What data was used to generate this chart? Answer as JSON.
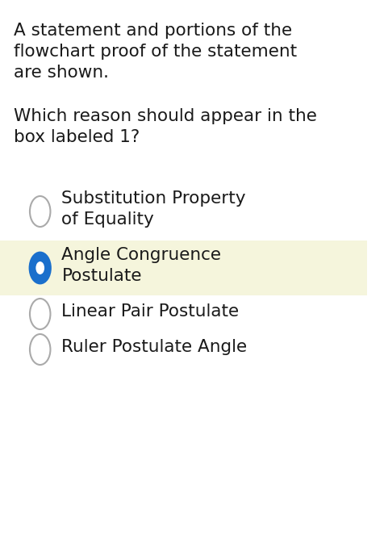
{
  "bg_color": "#ffffff",
  "highlight_color": "#f5f5dc",
  "question_lines": [
    "A statement and portions of the",
    "flowchart proof of the statement",
    "are shown."
  ],
  "question2_lines": [
    "Which reason should appear in the",
    "box labeled 1?"
  ],
  "options": [
    {
      "lines": [
        "Substitution Property",
        "of Equality"
      ],
      "selected": false,
      "highlighted": false
    },
    {
      "lines": [
        "Angle Congruence",
        "Postulate"
      ],
      "selected": true,
      "highlighted": true
    },
    {
      "lines": [
        "Linear Pair Postulate"
      ],
      "selected": false,
      "highlighted": false
    },
    {
      "lines": [
        "Ruler Postulate Angle"
      ],
      "selected": false,
      "highlighted": false
    }
  ],
  "text_color": "#1a1a1a",
  "circle_edge_unselected": "#aaaaaa",
  "circle_edge_selected": "#1a6fcc",
  "circle_fill_selected": "#1a6fcc",
  "circle_inner_selected": "#ffffff",
  "font_size_question": 15.5,
  "font_size_option": 15.5,
  "fig_width": 4.76,
  "fig_height": 6.79
}
